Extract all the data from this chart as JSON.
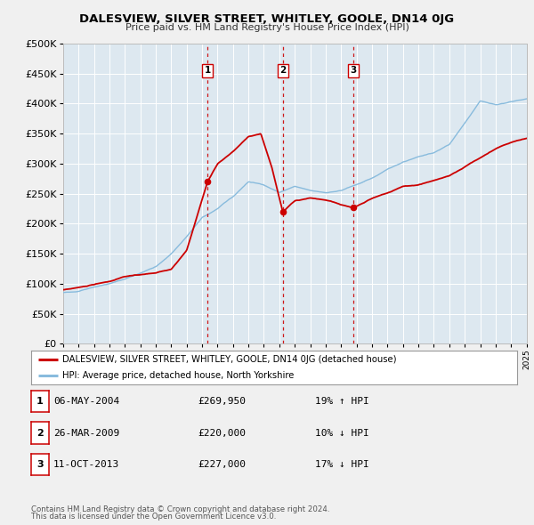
{
  "title": "DALESVIEW, SILVER STREET, WHITLEY, GOOLE, DN14 0JG",
  "subtitle": "Price paid vs. HM Land Registry's House Price Index (HPI)",
  "legend_label_red": "DALESVIEW, SILVER STREET, WHITLEY, GOOLE, DN14 0JG (detached house)",
  "legend_label_blue": "HPI: Average price, detached house, North Yorkshire",
  "footnote1": "Contains HM Land Registry data © Crown copyright and database right 2024.",
  "footnote2": "This data is licensed under the Open Government Licence v3.0.",
  "transactions": [
    {
      "num": 1,
      "date": "06-MAY-2004",
      "price": "£269,950",
      "pct": "19% ↑ HPI",
      "year": 2004.35,
      "value": 269950
    },
    {
      "num": 2,
      "date": "26-MAR-2009",
      "price": "£220,000",
      "pct": "10% ↓ HPI",
      "year": 2009.23,
      "value": 220000
    },
    {
      "num": 3,
      "date": "11-OCT-2013",
      "price": "£227,000",
      "pct": "17% ↓ HPI",
      "year": 2013.78,
      "value": 227000
    }
  ],
  "xmin": 1995,
  "xmax": 2025,
  "ymin": 0,
  "ymax": 500000,
  "yticks": [
    0,
    50000,
    100000,
    150000,
    200000,
    250000,
    300000,
    350000,
    400000,
    450000,
    500000
  ],
  "fig_bg_color": "#f0f0f0",
  "plot_bg_color": "#dde8f0",
  "red_color": "#cc0000",
  "blue_color": "#88bbdd",
  "grid_color": "#ffffff",
  "vline_color": "#cc0000",
  "dot_color": "#cc0000",
  "box_color": "#cc0000"
}
